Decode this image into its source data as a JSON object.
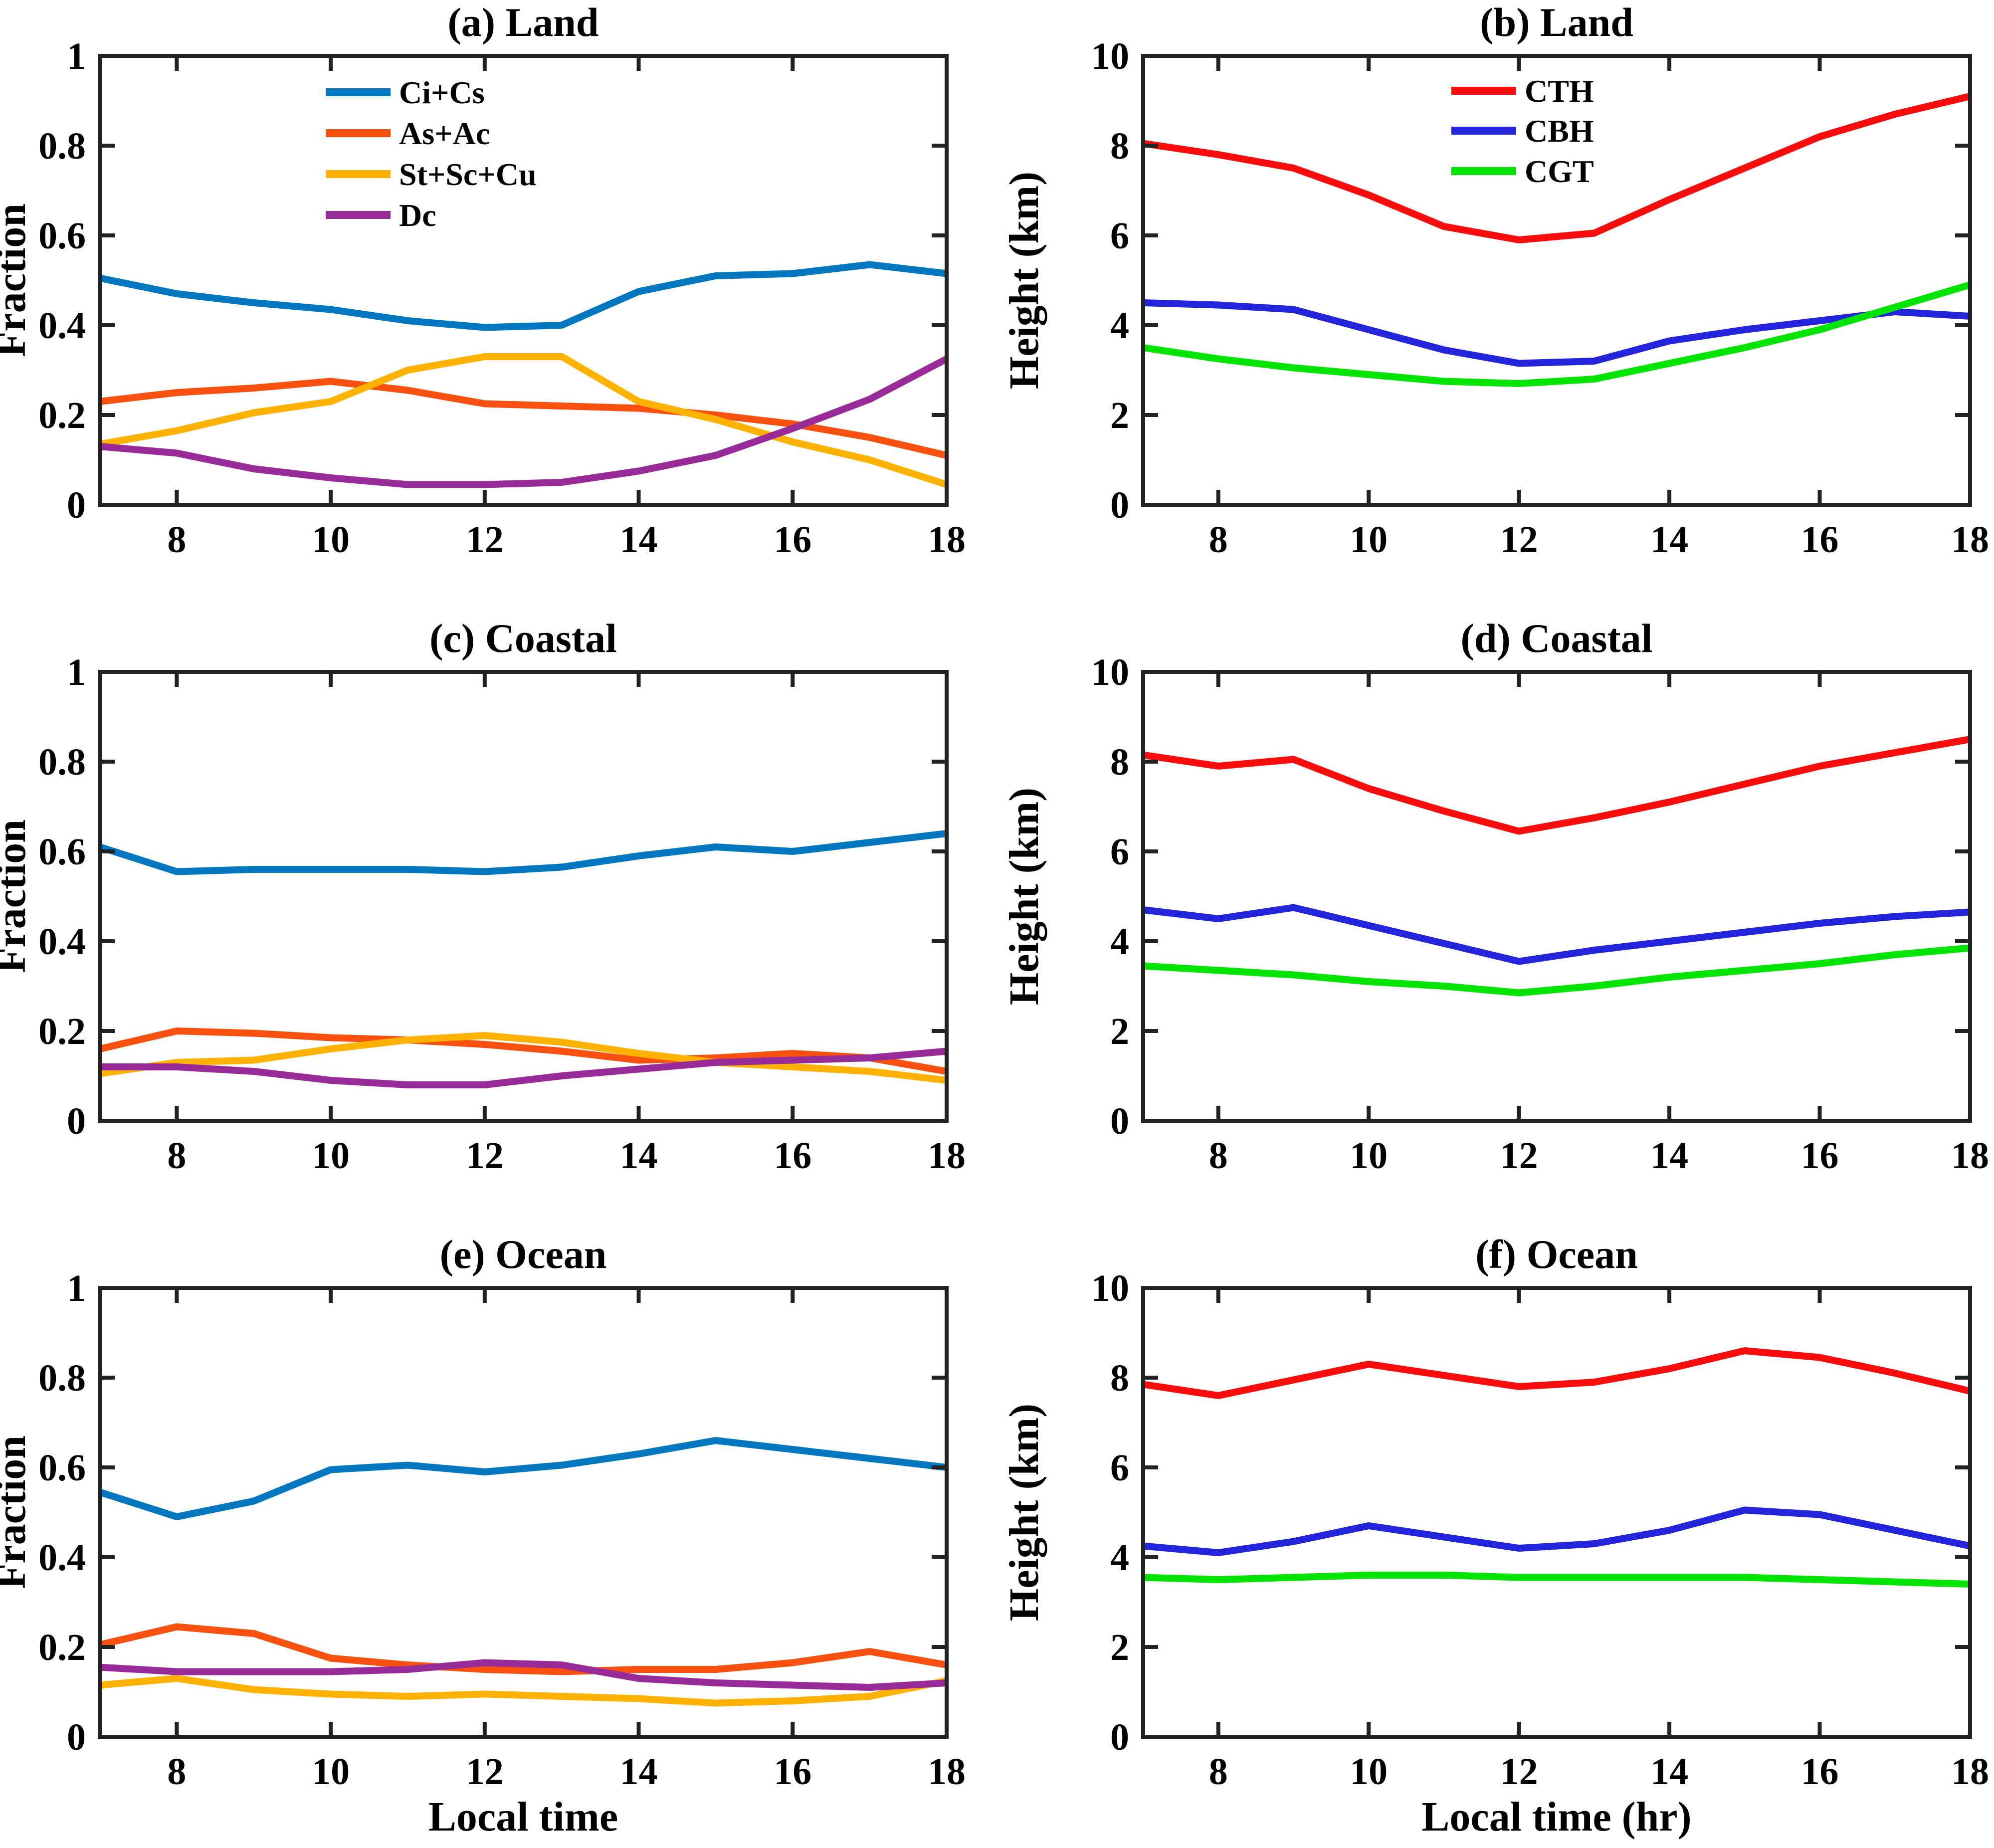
{
  "figure": {
    "background": "#ffffff",
    "axis_color": "#222222",
    "text_color": "#000000"
  },
  "chart_data": [
    {
      "id": "a",
      "type": "line",
      "title": "(a) Land",
      "column": "left",
      "xlabel": "",
      "ylabel": "Fraction",
      "xlim": [
        7,
        18
      ],
      "ylim": [
        0,
        1
      ],
      "grid": false,
      "legend_position": "top-inside-left-center",
      "xticks": {
        "values": [
          8,
          10,
          12,
          14,
          16,
          18
        ],
        "labels": [
          "8",
          "10",
          "12",
          "14",
          "16",
          "18"
        ]
      },
      "yticks": {
        "values": [
          0,
          0.2,
          0.4,
          0.6,
          0.8,
          1
        ],
        "labels": [
          "0",
          "0.2",
          "0.4",
          "0.6",
          "0.8",
          "1"
        ]
      },
      "x": [
        7,
        8,
        9,
        10,
        11,
        12,
        13,
        14,
        15,
        16,
        17,
        18
      ],
      "series": [
        {
          "name": "Ci+Cs",
          "color": "#0077BE",
          "values": [
            0.505,
            0.47,
            0.45,
            0.435,
            0.41,
            0.395,
            0.4,
            0.475,
            0.51,
            0.515,
            0.535,
            0.515
          ]
        },
        {
          "name": "As+Ac",
          "color": "#F8500F",
          "values": [
            0.23,
            0.25,
            0.26,
            0.275,
            0.255,
            0.225,
            0.22,
            0.215,
            0.2,
            0.18,
            0.15,
            0.11
          ]
        },
        {
          "name": "St+Sc+Cu",
          "color": "#FFB300",
          "values": [
            0.135,
            0.165,
            0.205,
            0.23,
            0.3,
            0.33,
            0.33,
            0.23,
            0.19,
            0.14,
            0.1,
            0.045
          ]
        },
        {
          "name": "Dc",
          "color": "#992B99",
          "values": [
            0.13,
            0.115,
            0.08,
            0.06,
            0.045,
            0.045,
            0.05,
            0.075,
            0.11,
            0.17,
            0.235,
            0.325
          ]
        }
      ]
    },
    {
      "id": "b",
      "type": "line",
      "title": "(b) Land",
      "column": "right",
      "xlabel": "",
      "ylabel": "Height (km)",
      "xlim": [
        7,
        18
      ],
      "ylim": [
        0,
        10
      ],
      "grid": false,
      "legend_position": "top-inside-center",
      "xticks": {
        "values": [
          8,
          10,
          12,
          14,
          16,
          18
        ],
        "labels": [
          "8",
          "10",
          "12",
          "14",
          "16",
          "18"
        ]
      },
      "yticks": {
        "values": [
          0,
          2,
          4,
          6,
          8,
          10
        ],
        "labels": [
          "0",
          "2",
          "4",
          "6",
          "8",
          "10"
        ]
      },
      "x": [
        7,
        8,
        9,
        10,
        11,
        12,
        13,
        14,
        15,
        16,
        17,
        18
      ],
      "series": [
        {
          "name": "CTH",
          "color": "#F80C0C",
          "values": [
            8.05,
            7.8,
            7.5,
            6.9,
            6.2,
            5.9,
            6.05,
            6.8,
            7.5,
            8.2,
            8.7,
            9.1
          ]
        },
        {
          "name": "CBH",
          "color": "#2424DB",
          "values": [
            4.5,
            4.45,
            4.35,
            3.9,
            3.45,
            3.15,
            3.2,
            3.65,
            3.9,
            4.1,
            4.3,
            4.2
          ]
        },
        {
          "name": "CGT",
          "color": "#02E402",
          "values": [
            3.5,
            3.25,
            3.05,
            2.9,
            2.75,
            2.7,
            2.8,
            3.15,
            3.5,
            3.9,
            4.4,
            4.9
          ]
        }
      ]
    },
    {
      "id": "c",
      "type": "line",
      "title": "(c) Coastal",
      "column": "left",
      "xlabel": "",
      "ylabel": "Fraction",
      "xlim": [
        7,
        18
      ],
      "ylim": [
        0,
        1
      ],
      "grid": false,
      "legend_position": "none",
      "xticks": {
        "values": [
          8,
          10,
          12,
          14,
          16,
          18
        ],
        "labels": [
          "8",
          "10",
          "12",
          "14",
          "16",
          "18"
        ]
      },
      "yticks": {
        "values": [
          0,
          0.2,
          0.4,
          0.6,
          0.8,
          1
        ],
        "labels": [
          "0",
          "0.2",
          "0.4",
          "0.6",
          "0.8",
          "1"
        ]
      },
      "x": [
        7,
        8,
        9,
        10,
        11,
        12,
        13,
        14,
        15,
        16,
        17,
        18
      ],
      "series": [
        {
          "name": "Ci+Cs",
          "color": "#0077BE",
          "values": [
            0.61,
            0.555,
            0.56,
            0.56,
            0.56,
            0.555,
            0.565,
            0.59,
            0.61,
            0.6,
            0.62,
            0.64
          ]
        },
        {
          "name": "As+Ac",
          "color": "#F8500F",
          "values": [
            0.16,
            0.2,
            0.195,
            0.185,
            0.18,
            0.17,
            0.155,
            0.135,
            0.14,
            0.15,
            0.14,
            0.11
          ]
        },
        {
          "name": "St+Sc+Cu",
          "color": "#FFB300",
          "values": [
            0.105,
            0.13,
            0.135,
            0.16,
            0.18,
            0.19,
            0.175,
            0.15,
            0.13,
            0.12,
            0.11,
            0.09
          ]
        },
        {
          "name": "Dc",
          "color": "#992B99",
          "values": [
            0.12,
            0.12,
            0.11,
            0.09,
            0.08,
            0.08,
            0.1,
            0.115,
            0.13,
            0.135,
            0.14,
            0.155
          ]
        }
      ]
    },
    {
      "id": "d",
      "type": "line",
      "title": "(d) Coastal",
      "column": "right",
      "xlabel": "",
      "ylabel": "Height (km)",
      "xlim": [
        7,
        18
      ],
      "ylim": [
        0,
        10
      ],
      "grid": false,
      "legend_position": "none",
      "xticks": {
        "values": [
          8,
          10,
          12,
          14,
          16,
          18
        ],
        "labels": [
          "8",
          "10",
          "12",
          "14",
          "16",
          "18"
        ]
      },
      "yticks": {
        "values": [
          0,
          2,
          4,
          6,
          8,
          10
        ],
        "labels": [
          "0",
          "2",
          "4",
          "6",
          "8",
          "10"
        ]
      },
      "x": [
        7,
        8,
        9,
        10,
        11,
        12,
        13,
        14,
        15,
        16,
        17,
        18
      ],
      "series": [
        {
          "name": "CTH",
          "color": "#F80C0C",
          "values": [
            8.15,
            7.9,
            8.05,
            7.4,
            6.9,
            6.45,
            6.75,
            7.1,
            7.5,
            7.9,
            8.2,
            8.5
          ]
        },
        {
          "name": "CBH",
          "color": "#2424DB",
          "values": [
            4.7,
            4.5,
            4.75,
            4.35,
            3.95,
            3.55,
            3.8,
            4.0,
            4.2,
            4.4,
            4.55,
            4.65
          ]
        },
        {
          "name": "CGT",
          "color": "#02E402",
          "values": [
            3.45,
            3.35,
            3.25,
            3.1,
            3.0,
            2.85,
            3.0,
            3.2,
            3.35,
            3.5,
            3.7,
            3.85
          ]
        }
      ]
    },
    {
      "id": "e",
      "type": "line",
      "title": "(e) Ocean",
      "column": "left",
      "xlabel": "Local time",
      "ylabel": "Fraction",
      "xlim": [
        7,
        18
      ],
      "ylim": [
        0,
        1
      ],
      "grid": false,
      "legend_position": "none",
      "xticks": {
        "values": [
          8,
          10,
          12,
          14,
          16,
          18
        ],
        "labels": [
          "8",
          "10",
          "12",
          "14",
          "16",
          "18"
        ]
      },
      "yticks": {
        "values": [
          0,
          0.2,
          0.4,
          0.6,
          0.8,
          1
        ],
        "labels": [
          "0",
          "0.2",
          "0.4",
          "0.6",
          "0.8",
          "1"
        ]
      },
      "x": [
        7,
        8,
        9,
        10,
        11,
        12,
        13,
        14,
        15,
        16,
        17,
        18
      ],
      "series": [
        {
          "name": "Ci+Cs",
          "color": "#0077BE",
          "values": [
            0.545,
            0.49,
            0.525,
            0.595,
            0.605,
            0.59,
            0.605,
            0.63,
            0.66,
            0.64,
            0.62,
            0.6
          ]
        },
        {
          "name": "As+Ac",
          "color": "#F8500F",
          "values": [
            0.205,
            0.245,
            0.23,
            0.175,
            0.16,
            0.15,
            0.145,
            0.15,
            0.15,
            0.165,
            0.19,
            0.16
          ]
        },
        {
          "name": "St+Sc+Cu",
          "color": "#FFB300",
          "values": [
            0.115,
            0.13,
            0.105,
            0.095,
            0.09,
            0.095,
            0.09,
            0.085,
            0.075,
            0.08,
            0.09,
            0.125
          ]
        },
        {
          "name": "Dc",
          "color": "#992B99",
          "values": [
            0.155,
            0.145,
            0.145,
            0.145,
            0.15,
            0.165,
            0.16,
            0.13,
            0.12,
            0.115,
            0.11,
            0.12
          ]
        }
      ]
    },
    {
      "id": "f",
      "type": "line",
      "title": "(f) Ocean",
      "column": "right",
      "xlabel": "Local time (hr)",
      "ylabel": "Height (km)",
      "xlim": [
        7,
        18
      ],
      "ylim": [
        0,
        10
      ],
      "grid": false,
      "legend_position": "none",
      "xticks": {
        "values": [
          8,
          10,
          12,
          14,
          16,
          18
        ],
        "labels": [
          "8",
          "10",
          "12",
          "14",
          "16",
          "18"
        ]
      },
      "yticks": {
        "values": [
          0,
          2,
          4,
          6,
          8,
          10
        ],
        "labels": [
          "0",
          "2",
          "4",
          "6",
          "8",
          "10"
        ]
      },
      "x": [
        7,
        8,
        9,
        10,
        11,
        12,
        13,
        14,
        15,
        16,
        17,
        18
      ],
      "series": [
        {
          "name": "CTH",
          "color": "#F80C0C",
          "values": [
            7.85,
            7.6,
            7.95,
            8.3,
            8.05,
            7.8,
            7.9,
            8.2,
            8.6,
            8.45,
            8.1,
            7.7
          ]
        },
        {
          "name": "CBH",
          "color": "#2424DB",
          "values": [
            4.25,
            4.1,
            4.35,
            4.7,
            4.45,
            4.2,
            4.3,
            4.6,
            5.05,
            4.95,
            4.6,
            4.25
          ]
        },
        {
          "name": "CGT",
          "color": "#02E402",
          "values": [
            3.55,
            3.5,
            3.55,
            3.6,
            3.6,
            3.55,
            3.55,
            3.55,
            3.55,
            3.5,
            3.45,
            3.4
          ]
        }
      ]
    }
  ]
}
